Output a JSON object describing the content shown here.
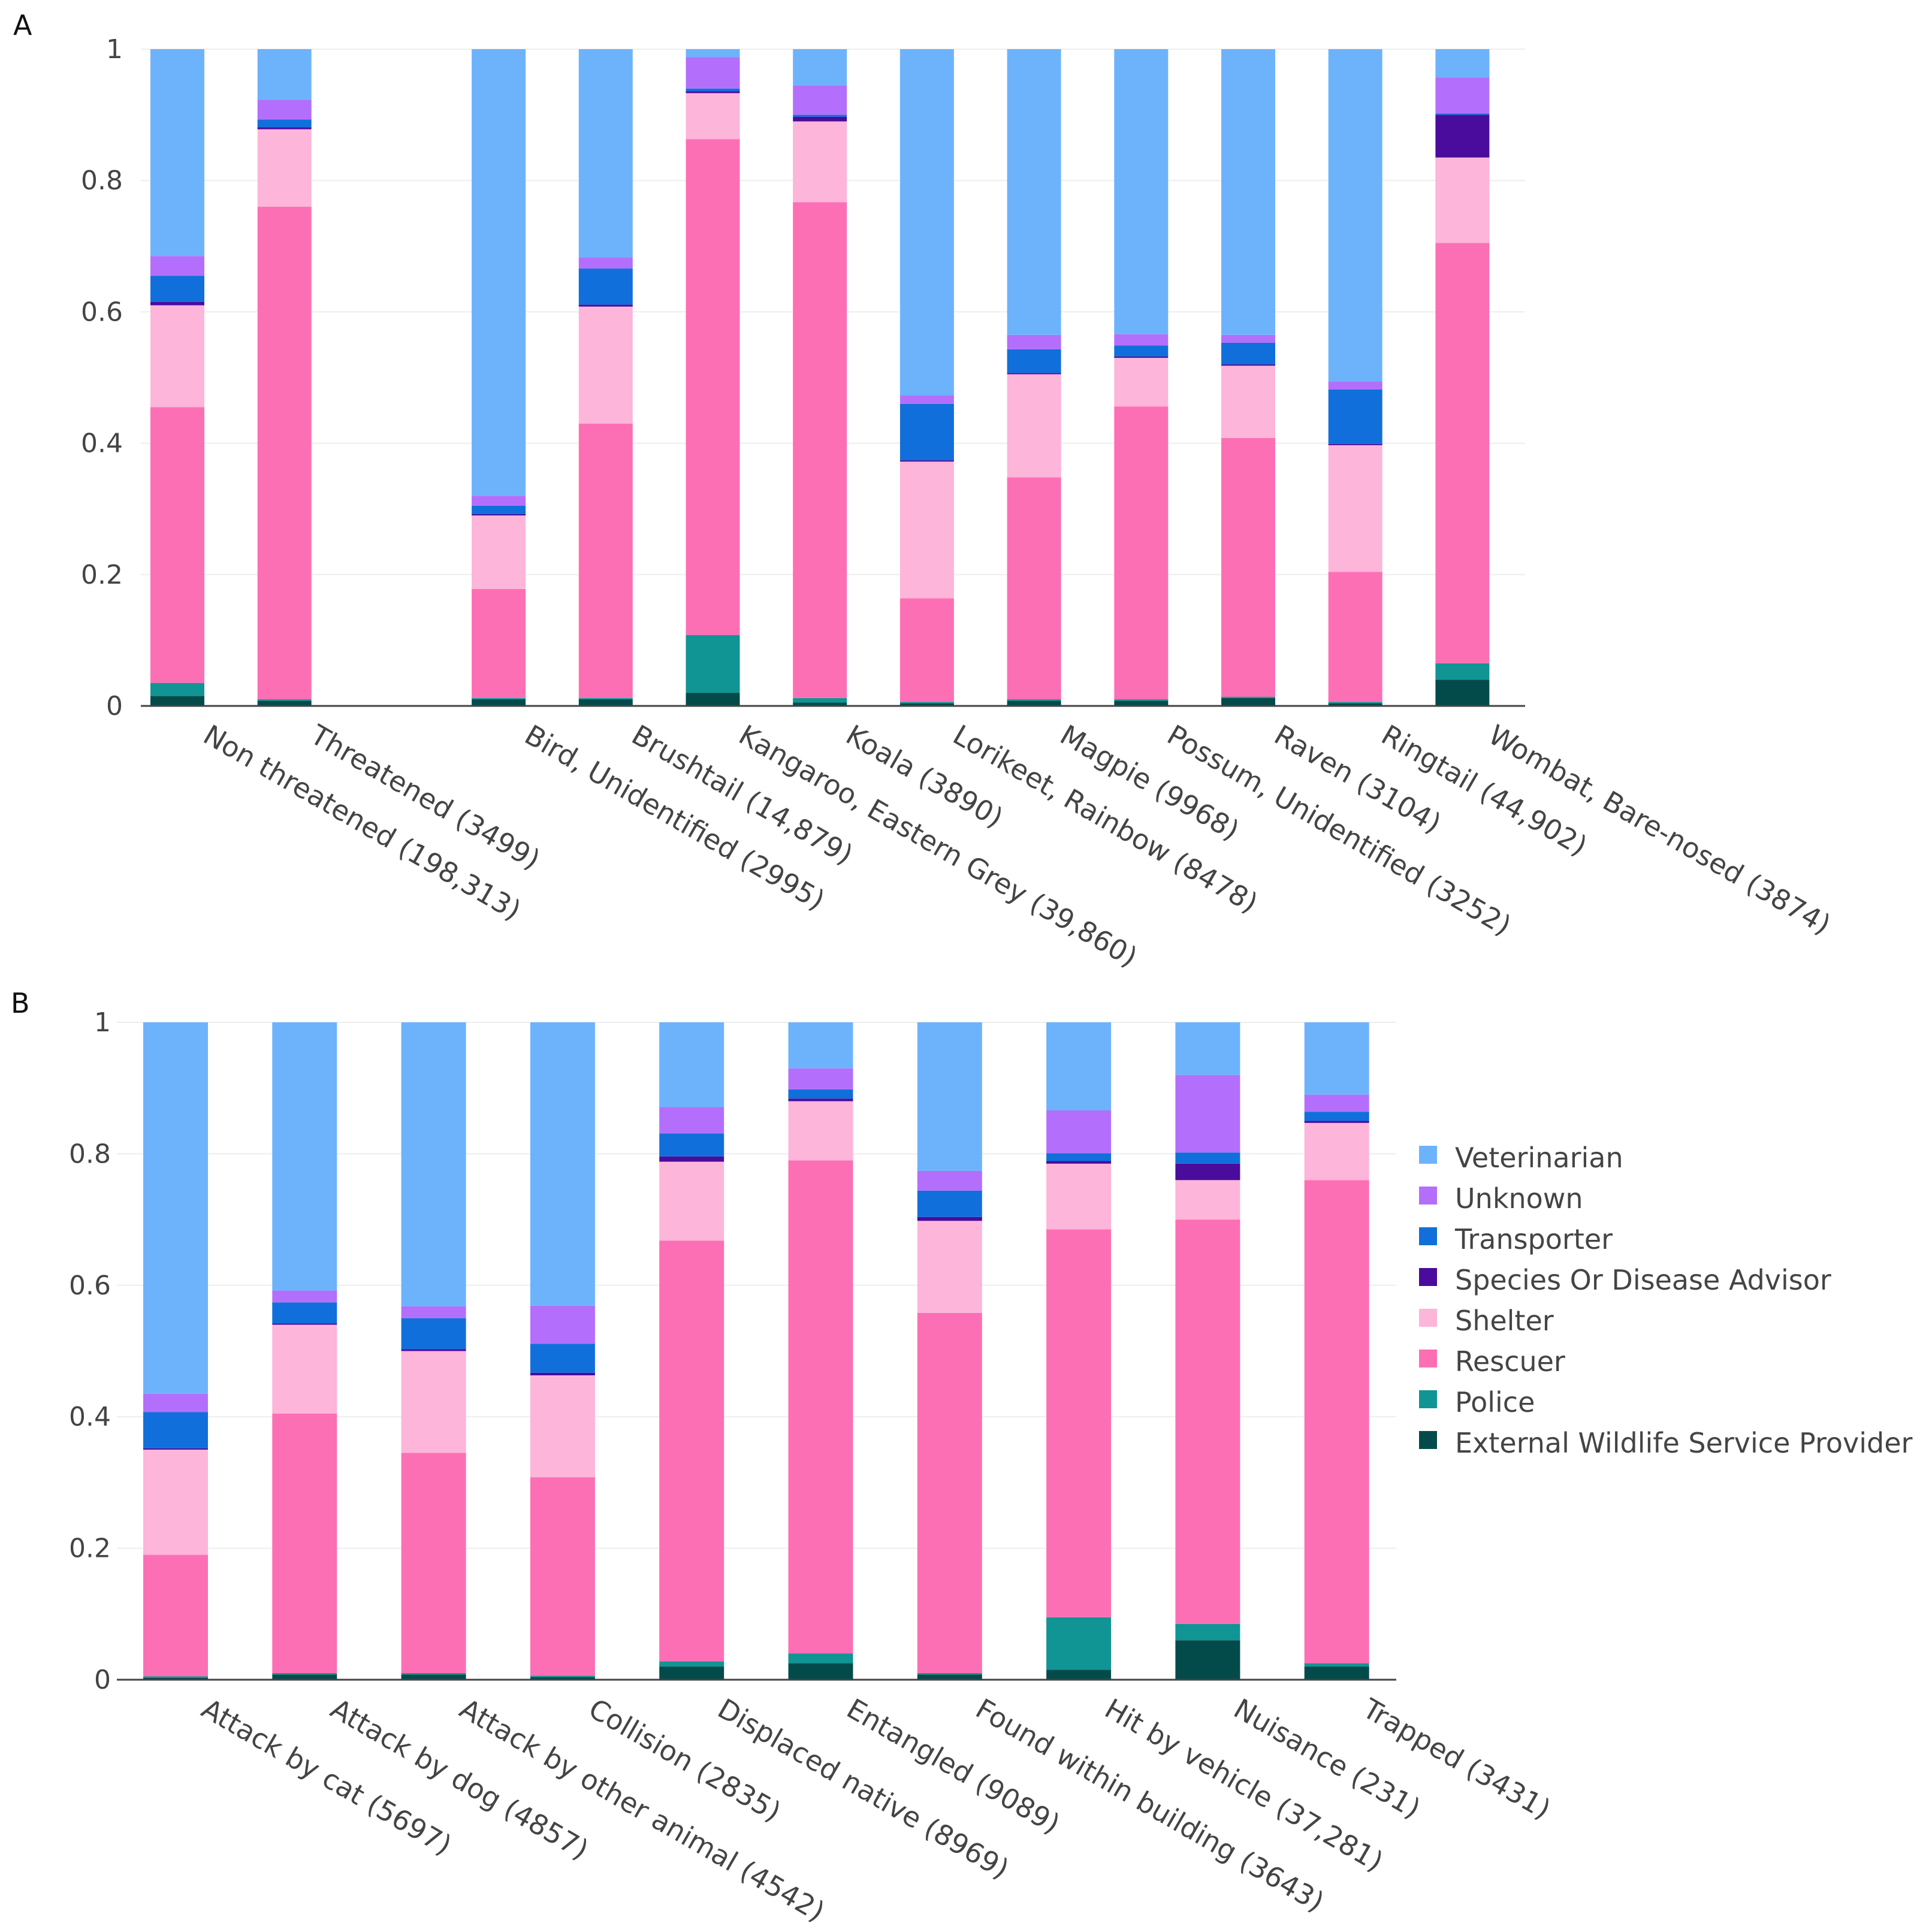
{
  "colors": {
    "Veterinarian": "#6db3fc",
    "Unknown": "#b36ffb",
    "Transporter": "#116fdc",
    "Species Or Disease Advisor": "#4a0c9c",
    "Shelter": "#fdb5d9",
    "Rescuer": "#fd6fb4",
    "Police": "#119494",
    "External Wildlife Service Provider": "#034b4b"
  },
  "legend": {
    "items": [
      "Veterinarian",
      "Unknown",
      "Transporter",
      "Species Or Disease Advisor",
      "Shelter",
      "Rescuer",
      "Police",
      "External Wildlife Service Provider"
    ]
  },
  "chart_data": [
    {
      "panel": "A",
      "type": "bar",
      "stacked": true,
      "ylim": [
        0,
        1
      ],
      "yticks": [
        "0",
        "0.2",
        "0.4",
        "0.6",
        "0.8",
        "1"
      ],
      "stack_order": [
        "External Wildlife Service Provider",
        "Police",
        "Rescuer",
        "Shelter",
        "Species Or Disease Advisor",
        "Transporter",
        "Unknown",
        "Veterinarian"
      ],
      "categories": [
        "Non threatened (198,313)",
        "Threatened (3499)",
        "",
        "Bird, Unidentified (2995)",
        "Brushtail (14,879)",
        "Kangaroo, Eastern Grey (39,860)",
        "Koala (3890)",
        "Lorikeet, Rainbow (8478)",
        "Magpie (9968)",
        "Possum, Unidentified (3252)",
        "Raven (3104)",
        "Ringtail (44,902)",
        "Wombat, Bare-nosed (3874)"
      ],
      "series": [
        {
          "name": "External Wildlife Service Provider",
          "values": [
            0.015,
            0.008,
            0,
            0.01,
            0.01,
            0.02,
            0.005,
            0.004,
            0.008,
            0.008,
            0.012,
            0.004,
            0.04
          ]
        },
        {
          "name": "Police",
          "values": [
            0.02,
            0.002,
            0,
            0.002,
            0.002,
            0.088,
            0.007,
            0.002,
            0.002,
            0.002,
            0.002,
            0.002,
            0.025
          ]
        },
        {
          "name": "Rescuer",
          "values": [
            0.42,
            0.75,
            0,
            0.166,
            0.418,
            0.755,
            0.755,
            0.158,
            0.338,
            0.446,
            0.394,
            0.198,
            0.64
          ]
        },
        {
          "name": "Shelter",
          "values": [
            0.155,
            0.118,
            0,
            0.112,
            0.178,
            0.07,
            0.123,
            0.208,
            0.157,
            0.074,
            0.11,
            0.193,
            0.13
          ]
        },
        {
          "name": "Species Or Disease Advisor",
          "values": [
            0.005,
            0.003,
            0,
            0.002,
            0.003,
            0.003,
            0.007,
            0.002,
            0.002,
            0.002,
            0.002,
            0.002,
            0.065
          ]
        },
        {
          "name": "Transporter",
          "values": [
            0.04,
            0.012,
            0,
            0.013,
            0.055,
            0.004,
            0.003,
            0.086,
            0.036,
            0.017,
            0.033,
            0.083,
            0.002
          ]
        },
        {
          "name": "Unknown",
          "values": [
            0.03,
            0.03,
            0,
            0.015,
            0.017,
            0.048,
            0.045,
            0.013,
            0.022,
            0.017,
            0.012,
            0.012,
            0.055
          ]
        },
        {
          "name": "Veterinarian",
          "values": [
            0.315,
            0.077,
            0,
            0.68,
            0.317,
            0.012,
            0.055,
            0.527,
            0.435,
            0.434,
            0.435,
            0.506,
            0.043
          ]
        }
      ]
    },
    {
      "panel": "B",
      "type": "bar",
      "stacked": true,
      "ylim": [
        0,
        1
      ],
      "yticks": [
        "0",
        "0.2",
        "0.4",
        "0.6",
        "0.8",
        "1"
      ],
      "stack_order": [
        "External Wildlife Service Provider",
        "Police",
        "Rescuer",
        "Shelter",
        "Species Or Disease Advisor",
        "Transporter",
        "Unknown",
        "Veterinarian"
      ],
      "categories": [
        "Attack by cat (5697)",
        "Attack by dog (4857)",
        "Attack by other animal (4542)",
        "Collision (2835)",
        "Displaced native (8969)",
        "Entangled (9089)",
        "Found within building (3643)",
        "Hit by vehicle (37,281)",
        "Nuisance (231)",
        "Trapped (3431)"
      ],
      "series": [
        {
          "name": "External Wildlife Service Provider",
          "values": [
            0.003,
            0.008,
            0.008,
            0.004,
            0.02,
            0.025,
            0.008,
            0.015,
            0.06,
            0.02
          ]
        },
        {
          "name": "Police",
          "values": [
            0.002,
            0.002,
            0.002,
            0.002,
            0.008,
            0.015,
            0.002,
            0.08,
            0.025,
            0.005
          ]
        },
        {
          "name": "Rescuer",
          "values": [
            0.185,
            0.395,
            0.335,
            0.302,
            0.64,
            0.75,
            0.548,
            0.59,
            0.615,
            0.735
          ]
        },
        {
          "name": "Shelter",
          "values": [
            0.16,
            0.135,
            0.155,
            0.155,
            0.12,
            0.09,
            0.14,
            0.1,
            0.06,
            0.087
          ]
        },
        {
          "name": "Species Or Disease Advisor",
          "values": [
            0.002,
            0.002,
            0.003,
            0.004,
            0.008,
            0.004,
            0.006,
            0.004,
            0.025,
            0.003
          ]
        },
        {
          "name": "Transporter",
          "values": [
            0.055,
            0.032,
            0.047,
            0.044,
            0.035,
            0.014,
            0.04,
            0.012,
            0.017,
            0.014
          ]
        },
        {
          "name": "Unknown",
          "values": [
            0.028,
            0.018,
            0.018,
            0.058,
            0.04,
            0.032,
            0.03,
            0.065,
            0.118,
            0.026
          ]
        },
        {
          "name": "Veterinarian",
          "values": [
            0.565,
            0.408,
            0.432,
            0.431,
            0.129,
            0.07,
            0.226,
            0.134,
            0.08,
            0.11
          ]
        }
      ]
    }
  ],
  "panels": {
    "a_label": "A",
    "b_label": "B"
  }
}
